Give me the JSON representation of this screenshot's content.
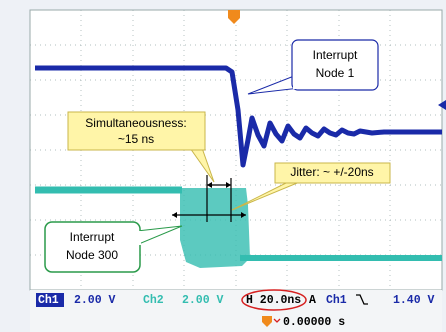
{
  "callouts": {
    "node1": {
      "lines": [
        "Interrupt",
        "Node 1"
      ]
    },
    "simultaneousness": {
      "lines": [
        "Simultaneousness:",
        "~15 ns"
      ]
    },
    "jitter": {
      "lines": [
        "Jitter: ~ +/-20ns"
      ]
    },
    "node300": {
      "lines": [
        "Interrupt",
        "Node 300"
      ]
    }
  },
  "status_bar": {
    "ch1_label": "Ch1",
    "ch1_scale": "2.00 V",
    "ch2_label": "Ch2",
    "ch2_scale": "2.00 V",
    "horizontal": "H 20.0ns",
    "acquire": "A",
    "trigger_source": "Ch1",
    "trigger_level": "1.40 V",
    "trigger_position": "0.00000 s"
  }
}
